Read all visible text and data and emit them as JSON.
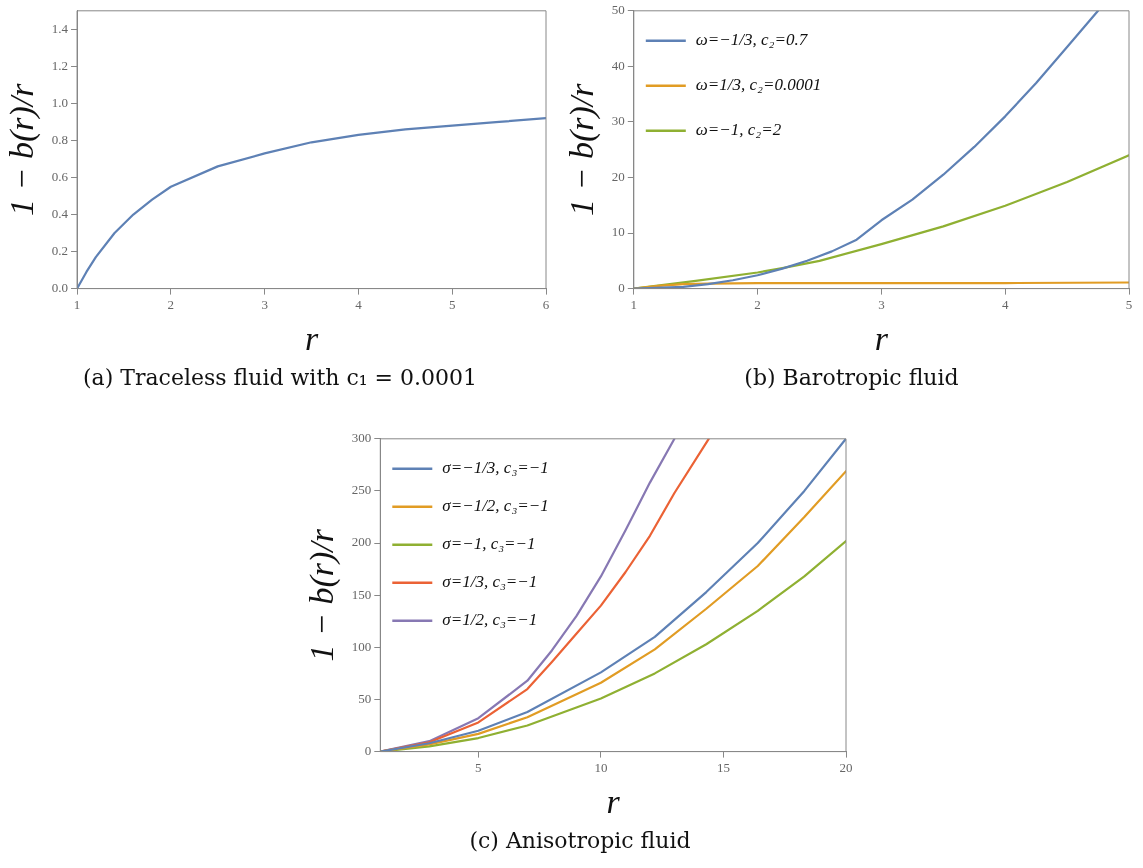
{
  "chart_data": [
    {
      "type": "line",
      "title": "(a) Traceless fluid with c₁ = 0.0001",
      "xlabel": "r",
      "ylabel": "1 − b(r)/r",
      "xlim": [
        1,
        6
      ],
      "ylim": [
        0,
        1.5
      ],
      "xticks": [
        1,
        2,
        3,
        4,
        5,
        6
      ],
      "yticks": [
        {
          "value": 0,
          "label": "0.0"
        },
        {
          "value": 0.2,
          "label": "0.2"
        },
        {
          "value": 0.4,
          "label": "0.4"
        },
        {
          "value": 0.6,
          "label": "0.6"
        },
        {
          "value": 0.8,
          "label": "0.8"
        },
        {
          "value": 1,
          "label": "1.0"
        },
        {
          "value": 1.2,
          "label": "1.2"
        },
        {
          "value": 1.4,
          "label": "1.4"
        }
      ],
      "grid": false,
      "legend": false,
      "marker": "none",
      "line_style": "solid",
      "series": [
        {
          "color": "#5e81b5",
          "x": [
            1,
            1.1,
            1.2,
            1.4,
            1.6,
            1.8,
            2,
            2.5,
            3,
            3.5,
            4,
            4.5,
            5,
            5.5,
            6
          ],
          "values": [
            0,
            0.09,
            0.17,
            0.3,
            0.4,
            0.48,
            0.55,
            0.66,
            0.73,
            0.79,
            0.83,
            0.86,
            0.88,
            0.9,
            0.92
          ]
        }
      ]
    },
    {
      "type": "line",
      "title": "(b) Barotropic fluid",
      "xlabel": "r",
      "ylabel": "1 − b(r)/r",
      "xlim": [
        1,
        5
      ],
      "ylim": [
        0,
        50
      ],
      "xticks": [
        1,
        2,
        3,
        4,
        5
      ],
      "yticks": [
        0,
        10,
        20,
        30,
        40,
        50
      ],
      "grid": false,
      "legend": "top left",
      "marker": "none",
      "line_style": "solid",
      "series": [
        {
          "name": "ω=−1/3, c₂=0.7",
          "color": "#5e81b5",
          "x": [
            1,
            1.4,
            1.6,
            1.8,
            2,
            2.2,
            2.4,
            2.6,
            2.8,
            3,
            3.25,
            3.5,
            3.75,
            4,
            4.25,
            4.5,
            4.75
          ],
          "values": [
            0,
            0.3,
            0.8,
            1.5,
            2.4,
            3.6,
            5,
            6.7,
            8.8,
            12.3,
            16,
            20.5,
            25.5,
            31,
            37,
            43.5,
            50
          ]
        },
        {
          "name": "ω=1/3, c₂=0.0001",
          "color": "#e19c24",
          "x": [
            1,
            1.2,
            1.4,
            1.6,
            2,
            3,
            4,
            5
          ],
          "values": [
            0,
            0.5,
            0.8,
            0.9,
            1,
            1,
            1,
            1.1
          ]
        },
        {
          "name": "ω=−1, c₂=2",
          "color": "#8fb032",
          "x": [
            1,
            1.5,
            2,
            2.2,
            2.5,
            3,
            3.5,
            4,
            4.5,
            5
          ],
          "values": [
            0,
            1.4,
            2.9,
            3.7,
            5,
            8,
            11.2,
            14.9,
            19.2,
            24
          ]
        }
      ]
    },
    {
      "type": "line",
      "title": "(c) Anisotropic fluid",
      "xlabel": "r",
      "ylabel": "1 − b(r)/r",
      "xlim": [
        1,
        20
      ],
      "ylim": [
        0,
        300
      ],
      "xticks": [
        5,
        10,
        15,
        20
      ],
      "yticks": [
        0,
        50,
        100,
        150,
        200,
        250,
        300
      ],
      "grid": false,
      "legend": "top left",
      "marker": "none",
      "line_style": "solid",
      "series": [
        {
          "name": "σ=−1/3, c₃=−1",
          "color": "#5e81b5",
          "x": [
            1,
            3,
            5,
            7,
            10,
            12.2,
            14.3,
            16.4,
            18.3,
            20
          ],
          "values": [
            0,
            8,
            20,
            38,
            76,
            110,
            153,
            200,
            250,
            300
          ]
        },
        {
          "name": "σ=−1/2, c₃=−1",
          "color": "#e19c24",
          "x": [
            1,
            3,
            5,
            7,
            10,
            12.2,
            14.3,
            16.4,
            18.3,
            20
          ],
          "values": [
            0,
            7,
            17,
            33,
            66,
            98,
            137,
            178,
            225,
            269
          ]
        },
        {
          "name": "σ=−1, c₃=−1",
          "color": "#8fb032",
          "x": [
            1,
            3,
            5,
            7,
            10,
            12.2,
            14.3,
            16.4,
            18.3,
            20
          ],
          "values": [
            0,
            5,
            13,
            25,
            51,
            75,
            103,
            135,
            168,
            202
          ]
        },
        {
          "name": "σ=1/3, c₃=−1",
          "color": "#eb6235",
          "x": [
            1,
            3,
            5,
            7,
            8,
            9,
            10,
            11,
            12,
            13,
            14.4
          ],
          "values": [
            0,
            9,
            28,
            60,
            86,
            113,
            140,
            172,
            207,
            248,
            300
          ]
        },
        {
          "name": "σ=1/2, c₃=−1",
          "color": "#8778b3",
          "x": [
            1,
            3,
            5,
            7,
            8,
            9,
            10,
            11,
            12,
            13
          ],
          "values": [
            0,
            10,
            32,
            68,
            97,
            130,
            168,
            212,
            258,
            300
          ]
        }
      ]
    }
  ]
}
